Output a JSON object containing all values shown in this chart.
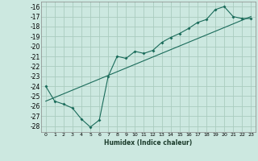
{
  "xlabel": "Humidex (Indice chaleur)",
  "bg_color": "#cce8e0",
  "grid_color": "#aaccbf",
  "line_color": "#1a6b5a",
  "xlim": [
    -0.5,
    23.5
  ],
  "ylim": [
    -28.6,
    -15.5
  ],
  "xticks": [
    0,
    1,
    2,
    3,
    4,
    5,
    6,
    7,
    8,
    9,
    10,
    11,
    12,
    13,
    14,
    15,
    16,
    17,
    18,
    19,
    20,
    21,
    22,
    23
  ],
  "yticks": [
    -16,
    -17,
    -18,
    -19,
    -20,
    -21,
    -22,
    -23,
    -24,
    -25,
    -26,
    -27,
    -28
  ],
  "scatter_x": [
    0,
    1,
    2,
    3,
    4,
    5,
    6,
    7,
    8,
    9,
    10,
    11,
    12,
    13,
    14,
    15,
    16,
    17,
    18,
    19,
    20,
    21,
    22,
    23
  ],
  "scatter_y": [
    -24.0,
    -25.5,
    -25.8,
    -26.2,
    -27.3,
    -28.1,
    -27.4,
    -23.0,
    -21.0,
    -21.2,
    -20.5,
    -20.7,
    -20.4,
    -19.6,
    -19.1,
    -18.7,
    -18.2,
    -17.6,
    -17.3,
    -16.3,
    -16.0,
    -17.0,
    -17.2,
    -17.2
  ],
  "line2_x": [
    0,
    23
  ],
  "line2_y": [
    -25.5,
    -17.0
  ]
}
